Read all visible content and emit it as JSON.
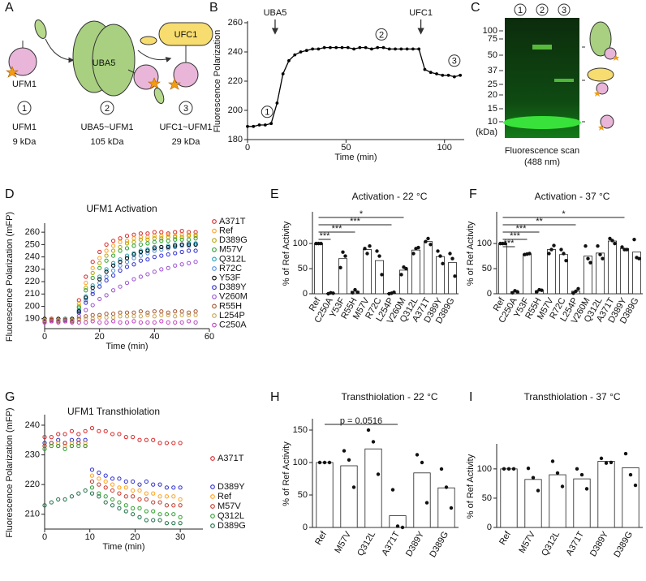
{
  "diagram": {
    "panel": "A",
    "shapes": {
      "ufm1": "UFM1",
      "uba5": "UBA5",
      "ufc1": "UFC1"
    },
    "steps": [
      {
        "number": "1",
        "name": "UFM1",
        "mass": "9 kDa"
      },
      {
        "number": "2",
        "name": "UBA5~UFM1",
        "mass": "105 kDa"
      },
      {
        "number": "3",
        "name": "UFC1~UFM1",
        "mass": "29 kDa"
      }
    ]
  },
  "gel": {
    "panel": "C",
    "lanes": [
      "1",
      "2",
      "3"
    ],
    "markers": [
      "100",
      "75",
      "50",
      "37",
      "25",
      "20",
      "15",
      "10"
    ],
    "unit": "(kDa)",
    "caption": [
      "Fluorescence scan",
      "(488 nm)"
    ]
  },
  "chart_data": [
    {
      "panel": "B",
      "type": "line",
      "xlabel": "Time (min)",
      "ylabel": "Fluorescence Polarization",
      "color": "#000000",
      "x": [
        0,
        3,
        6,
        9,
        12,
        15,
        18,
        21,
        24,
        27,
        30,
        33,
        36,
        39,
        42,
        45,
        48,
        51,
        54,
        57,
        60,
        63,
        66,
        69,
        72,
        75,
        78,
        81,
        84,
        87,
        90,
        93,
        96,
        99,
        102,
        105,
        108
      ],
      "values": [
        189,
        189,
        190,
        190,
        191,
        205,
        225,
        234,
        238,
        240,
        241,
        242,
        242,
        243,
        243,
        243,
        243,
        243,
        242,
        243,
        243,
        242,
        243,
        243,
        242,
        242,
        242,
        242,
        242,
        242,
        228,
        226,
        225,
        224,
        224,
        223,
        224
      ],
      "xlim": [
        0,
        110
      ],
      "xticks": [
        0,
        50,
        100
      ],
      "ylim": [
        180,
        260
      ],
      "yticks": [
        180,
        200,
        220,
        240,
        260
      ],
      "arrows": [
        {
          "label": "UBA5",
          "x": 14
        },
        {
          "label": "UFC1",
          "x": 88
        }
      ],
      "markers": [
        {
          "label": "1",
          "x": 10,
          "y": 199
        },
        {
          "label": "2",
          "x": 68,
          "y": 252
        },
        {
          "label": "3",
          "x": 105,
          "y": 234
        }
      ]
    },
    {
      "panel": "D",
      "type": "scatter",
      "title": "UFM1 Activation",
      "xlabel": "Time (min)",
      "ylabel": "Fluorescence Polarization (mFP)",
      "x": [
        0,
        2.5,
        5,
        7.5,
        10,
        12.5,
        15,
        17.5,
        20,
        22.5,
        25,
        27.5,
        30,
        32.5,
        35,
        37.5,
        40,
        42.5,
        45,
        47.5,
        50,
        52.5,
        55
      ],
      "xlim": [
        0,
        60
      ],
      "xticks": [
        0,
        20,
        40,
        60
      ],
      "ylim": [
        182,
        266
      ],
      "yticks": [
        190,
        200,
        210,
        220,
        230,
        240,
        250,
        260
      ],
      "series": [
        {
          "name": "A371T",
          "color": "#d62728",
          "values": [
            189,
            190,
            189,
            190,
            189,
            205,
            224,
            236,
            244,
            250,
            253,
            255,
            257,
            258,
            259,
            259,
            260,
            260,
            259,
            260,
            261,
            260,
            260
          ]
        },
        {
          "name": "Ref",
          "color": "#ff9f1a",
          "values": [
            188,
            189,
            188,
            189,
            188,
            202,
            219,
            231,
            239,
            245,
            249,
            252,
            253,
            255,
            256,
            256,
            257,
            257,
            258,
            257,
            258,
            258,
            258
          ]
        },
        {
          "name": "D389G",
          "color": "#b5a400",
          "values": [
            189,
            188,
            189,
            188,
            189,
            200,
            215,
            227,
            235,
            241,
            245,
            248,
            251,
            252,
            254,
            254,
            255,
            255,
            256,
            256,
            256,
            257,
            257
          ]
        },
        {
          "name": "M57V",
          "color": "#2ca02c",
          "values": [
            188,
            189,
            188,
            189,
            188,
            199,
            213,
            223,
            231,
            237,
            241,
            245,
            247,
            249,
            250,
            251,
            252,
            253,
            253,
            254,
            254,
            254,
            255
          ]
        },
        {
          "name": "Q312L",
          "color": "#17a2b8",
          "values": [
            189,
            188,
            189,
            190,
            189,
            197,
            208,
            217,
            224,
            230,
            235,
            238,
            241,
            243,
            245,
            246,
            248,
            248,
            249,
            250,
            250,
            251,
            251
          ]
        },
        {
          "name": "R72C",
          "color": "#4f8fd6",
          "values": [
            188,
            189,
            188,
            188,
            189,
            195,
            205,
            212,
            219,
            224,
            229,
            233,
            236,
            239,
            241,
            243,
            245,
            246,
            247,
            248,
            249,
            249,
            250
          ]
        },
        {
          "name": "Y53F",
          "color": "#000000",
          "values": [
            190,
            189,
            190,
            189,
            190,
            196,
            207,
            215,
            222,
            228,
            233,
            236,
            239,
            242,
            244,
            245,
            247,
            248,
            248,
            249,
            250,
            250,
            250
          ]
        },
        {
          "name": "D389Y",
          "color": "#2b2bd0",
          "values": [
            188,
            188,
            189,
            188,
            188,
            195,
            203,
            210,
            216,
            221,
            225,
            229,
            232,
            234,
            237,
            238,
            240,
            241,
            242,
            243,
            244,
            245,
            245
          ]
        },
        {
          "name": "V260M",
          "color": "#9b4fd1",
          "values": [
            189,
            188,
            189,
            189,
            188,
            192,
            197,
            201,
            206,
            209,
            213,
            216,
            219,
            222,
            224,
            226,
            228,
            230,
            231,
            233,
            234,
            235,
            236
          ]
        },
        {
          "name": "R55H",
          "color": "#a0522d",
          "values": [
            188,
            189,
            188,
            189,
            188,
            190,
            192,
            193,
            193,
            194,
            194,
            195,
            195,
            195,
            196,
            195,
            196,
            196,
            195,
            196,
            196,
            195,
            196
          ]
        },
        {
          "name": "L254P",
          "color": "#c9a24b",
          "values": [
            189,
            188,
            189,
            188,
            189,
            189,
            190,
            190,
            191,
            191,
            191,
            192,
            192,
            192,
            192,
            193,
            192,
            193,
            193,
            192,
            193,
            193,
            193
          ]
        },
        {
          "name": "C250A",
          "color": "#c040c0",
          "values": [
            187,
            188,
            187,
            188,
            187,
            187,
            187,
            188,
            187,
            187,
            188,
            187,
            187,
            188,
            187,
            187,
            187,
            188,
            187,
            187,
            187,
            188,
            187
          ]
        }
      ]
    },
    {
      "panel": "E",
      "type": "bar",
      "title": "Activation - 22 °C",
      "ylabel": "% of Ref Activity",
      "color": "#ffffff",
      "categories": [
        "Ref",
        "C250A",
        "Y53F",
        "R55H",
        "M57V",
        "R72C",
        "L254P",
        "V260M",
        "Q312L",
        "A371T",
        "D389Y",
        "D389G"
      ],
      "values": [
        100,
        1,
        70,
        5,
        88,
        66,
        1,
        47,
        87,
        104,
        74,
        62
      ],
      "points": [
        [
          100,
          100,
          100
        ],
        [
          0,
          2,
          1
        ],
        [
          52,
          83,
          75
        ],
        [
          2,
          8,
          3
        ],
        [
          90,
          80,
          95
        ],
        [
          85,
          75,
          38
        ],
        [
          0,
          1,
          3
        ],
        [
          38,
          53,
          50
        ],
        [
          80,
          90,
          92
        ],
        [
          104,
          110,
          98
        ],
        [
          85,
          75,
          60
        ],
        [
          80,
          70,
          35
        ]
      ],
      "ylim": [
        0,
        160
      ],
      "yticks": [
        0,
        50,
        100
      ],
      "brackets": [
        {
          "from": "Ref",
          "to": "C250A",
          "label": "***"
        },
        {
          "from": "Ref",
          "to": "R55H",
          "label": "***"
        },
        {
          "from": "Ref",
          "to": "L254P",
          "label": "***"
        },
        {
          "from": "Ref",
          "to": "V260M",
          "label": "*"
        }
      ]
    },
    {
      "panel": "F",
      "type": "bar",
      "title": "Activation - 37 °C",
      "ylabel": "% of Ref Activity",
      "color": "#ffffff",
      "categories": [
        "Ref",
        "C250A",
        "Y53F",
        "R55H",
        "M57V",
        "R72C",
        "L254P",
        "V260M",
        "Q312L",
        "A371T",
        "D389Y",
        "D389G"
      ],
      "values": [
        100,
        4,
        79,
        6,
        88,
        78,
        5,
        75,
        81,
        105,
        90,
        83
      ],
      "points": [
        [
          100,
          100,
          100
        ],
        [
          2,
          6,
          4
        ],
        [
          78,
          79,
          80
        ],
        [
          4,
          8,
          7
        ],
        [
          80,
          88,
          96
        ],
        [
          88,
          80,
          66
        ],
        [
          1,
          5,
          10
        ],
        [
          95,
          70,
          62
        ],
        [
          95,
          78,
          70
        ],
        [
          110,
          106,
          100
        ],
        [
          93,
          88,
          88
        ],
        [
          108,
          72,
          70
        ]
      ],
      "ylim": [
        0,
        160
      ],
      "yticks": [
        0,
        50,
        100
      ],
      "brackets": [
        {
          "from": "Ref",
          "to": "C250A",
          "label": "***"
        },
        {
          "from": "Ref",
          "to": "Y53F",
          "label": "***"
        },
        {
          "from": "Ref",
          "to": "R55H",
          "label": "***"
        },
        {
          "from": "Ref",
          "to": "L254P",
          "label": "**"
        },
        {
          "from": "Ref",
          "to": "D389Y",
          "label": "*"
        }
      ]
    },
    {
      "panel": "G",
      "type": "scatter",
      "title": "UFM1 Transthiolation",
      "xlabel": "Time (min)",
      "ylabel": "Fluorescence Polarization (mFP)",
      "x": [
        0,
        1.5,
        3,
        4.5,
        6,
        7.5,
        9,
        10.5,
        12,
        13.5,
        15,
        16.5,
        18,
        19.5,
        21,
        22.5,
        24,
        25.5,
        27,
        28.5,
        30
      ],
      "xlim": [
        0,
        35
      ],
      "xticks": [
        0,
        10,
        20,
        30
      ],
      "ylim": [
        205,
        243
      ],
      "yticks": [
        210,
        220,
        230,
        240
      ],
      "series": [
        {
          "name": "A371T",
          "color": "#d62728",
          "values": [
            236,
            236,
            237,
            237,
            238,
            237,
            238,
            239,
            238,
            238,
            237,
            237,
            236,
            236,
            235,
            235,
            235,
            234,
            234,
            234,
            234
          ]
        },
        {
          "name": "D389Y",
          "color": "#2b2bd0",
          "values": [
            234,
            234,
            235,
            234,
            235,
            235,
            235,
            225,
            224,
            223,
            222,
            222,
            221,
            221,
            220,
            221,
            220,
            220,
            219,
            219,
            219
          ]
        },
        {
          "name": "Ref",
          "color": "#ff9f1a",
          "values": [
            233,
            233,
            234,
            233,
            234,
            234,
            234,
            223,
            222,
            221,
            220,
            219,
            219,
            218,
            218,
            217,
            217,
            216,
            216,
            216,
            215
          ]
        },
        {
          "name": "M57V",
          "color": "#c0392b",
          "values": [
            233,
            234,
            233,
            234,
            233,
            234,
            233,
            221,
            220,
            219,
            218,
            217,
            216,
            216,
            215,
            215,
            214,
            214,
            213,
            213,
            213
          ]
        },
        {
          "name": "Q312L",
          "color": "#2ca02c",
          "values": [
            232,
            233,
            233,
            232,
            233,
            233,
            233,
            219,
            217,
            216,
            215,
            214,
            213,
            212,
            212,
            211,
            211,
            210,
            210,
            210,
            209
          ]
        },
        {
          "name": "D389G",
          "color": "#1a6e45",
          "values": [
            213,
            214,
            215,
            215,
            216,
            217,
            218,
            217,
            216,
            214,
            213,
            212,
            211,
            210,
            209,
            208,
            208,
            208,
            207,
            207,
            207
          ]
        }
      ]
    },
    {
      "panel": "H",
      "type": "bar",
      "title": "Transthiolation - 22 °C",
      "ylabel": "% of Ref Activity",
      "color": "#ffffff",
      "categories": [
        "Ref",
        "M57V",
        "Q312L",
        "A371T",
        "D389Y",
        "D389G"
      ],
      "values": [
        100,
        95,
        121,
        18,
        84,
        61
      ],
      "points": [
        [
          100,
          100,
          100
        ],
        [
          118,
          104,
          62
        ],
        [
          150,
          132,
          82
        ],
        [
          58,
          2,
          0
        ],
        [
          112,
          100,
          38
        ],
        [
          90,
          62,
          30
        ]
      ],
      "ylim": [
        0,
        165
      ],
      "yticks": [
        0,
        50,
        100,
        150
      ],
      "brackets": [
        {
          "from": "Ref",
          "to": "A371T",
          "label": "p = 0.0516"
        }
      ]
    },
    {
      "panel": "I",
      "type": "bar",
      "title": "Transthiolation - 37 °C",
      "ylabel": "% of Ref Activity",
      "color": "#ffffff",
      "categories": [
        "Ref",
        "M57V",
        "Q312L",
        "A371T",
        "D389Y",
        "D389G"
      ],
      "values": [
        100,
        82,
        90,
        83,
        113,
        102
      ],
      "points": [
        [
          100,
          100,
          100
        ],
        [
          101,
          85,
          63
        ],
        [
          113,
          93,
          70
        ],
        [
          100,
          90,
          66
        ],
        [
          118,
          110,
          111
        ],
        [
          126,
          90,
          72
        ]
      ],
      "ylim": [
        0,
        140
      ],
      "yticks": [
        0,
        50,
        100
      ]
    }
  ]
}
